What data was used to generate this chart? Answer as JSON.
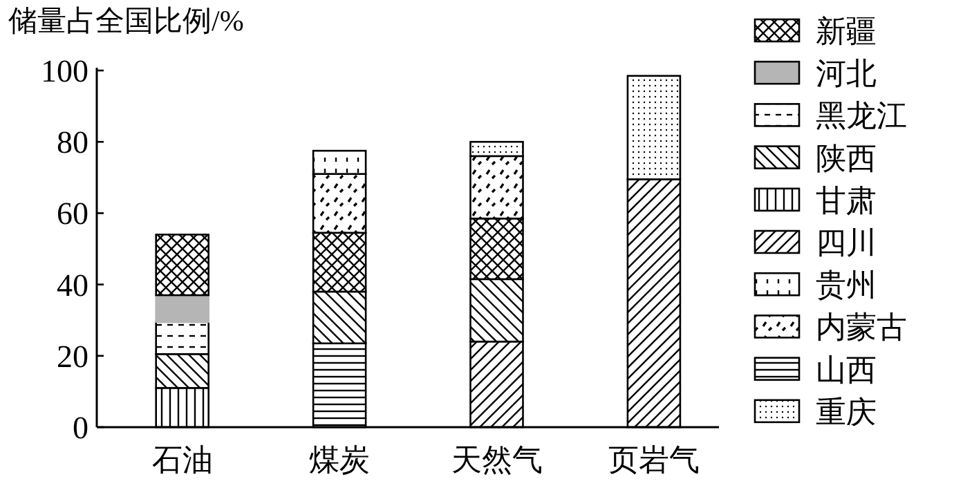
{
  "chart_data": {
    "type": "bar",
    "stacked": true,
    "ylabel": "储量占全国比例/%",
    "categories": [
      "石油",
      "煤炭",
      "天然气",
      "页岩气"
    ],
    "ylim": [
      0,
      100
    ],
    "yticks": [
      0,
      20,
      40,
      60,
      80,
      100
    ],
    "grid": false,
    "legend": "right",
    "series": [
      {
        "name": "甘肃",
        "color": "#000000",
        "values": [
          11,
          null,
          null,
          null
        ]
      },
      {
        "name": "山西",
        "color": "#000000",
        "values": [
          null,
          23.5,
          null,
          null
        ]
      },
      {
        "name": "四川",
        "color": "#000000",
        "values": [
          null,
          null,
          24,
          69.5
        ]
      },
      {
        "name": "陕西",
        "color": "#000000",
        "values": [
          9.5,
          14.5,
          17.5,
          null
        ]
      },
      {
        "name": "黑龙江",
        "color": "#000000",
        "values": [
          9,
          null,
          null,
          null
        ]
      },
      {
        "name": "河北",
        "color": "#b5b5b5",
        "values": [
          7.5,
          null,
          null,
          null
        ]
      },
      {
        "name": "新疆",
        "color": "#000000",
        "values": [
          17,
          16.5,
          17,
          null
        ]
      },
      {
        "name": "内蒙古",
        "color": "#000000",
        "values": [
          null,
          16.5,
          17.5,
          null
        ]
      },
      {
        "name": "贵州",
        "color": "#000000",
        "values": [
          null,
          6.5,
          null,
          null
        ]
      },
      {
        "name": "重庆",
        "color": "#000000",
        "values": [
          null,
          null,
          4,
          29
        ]
      }
    ]
  }
}
